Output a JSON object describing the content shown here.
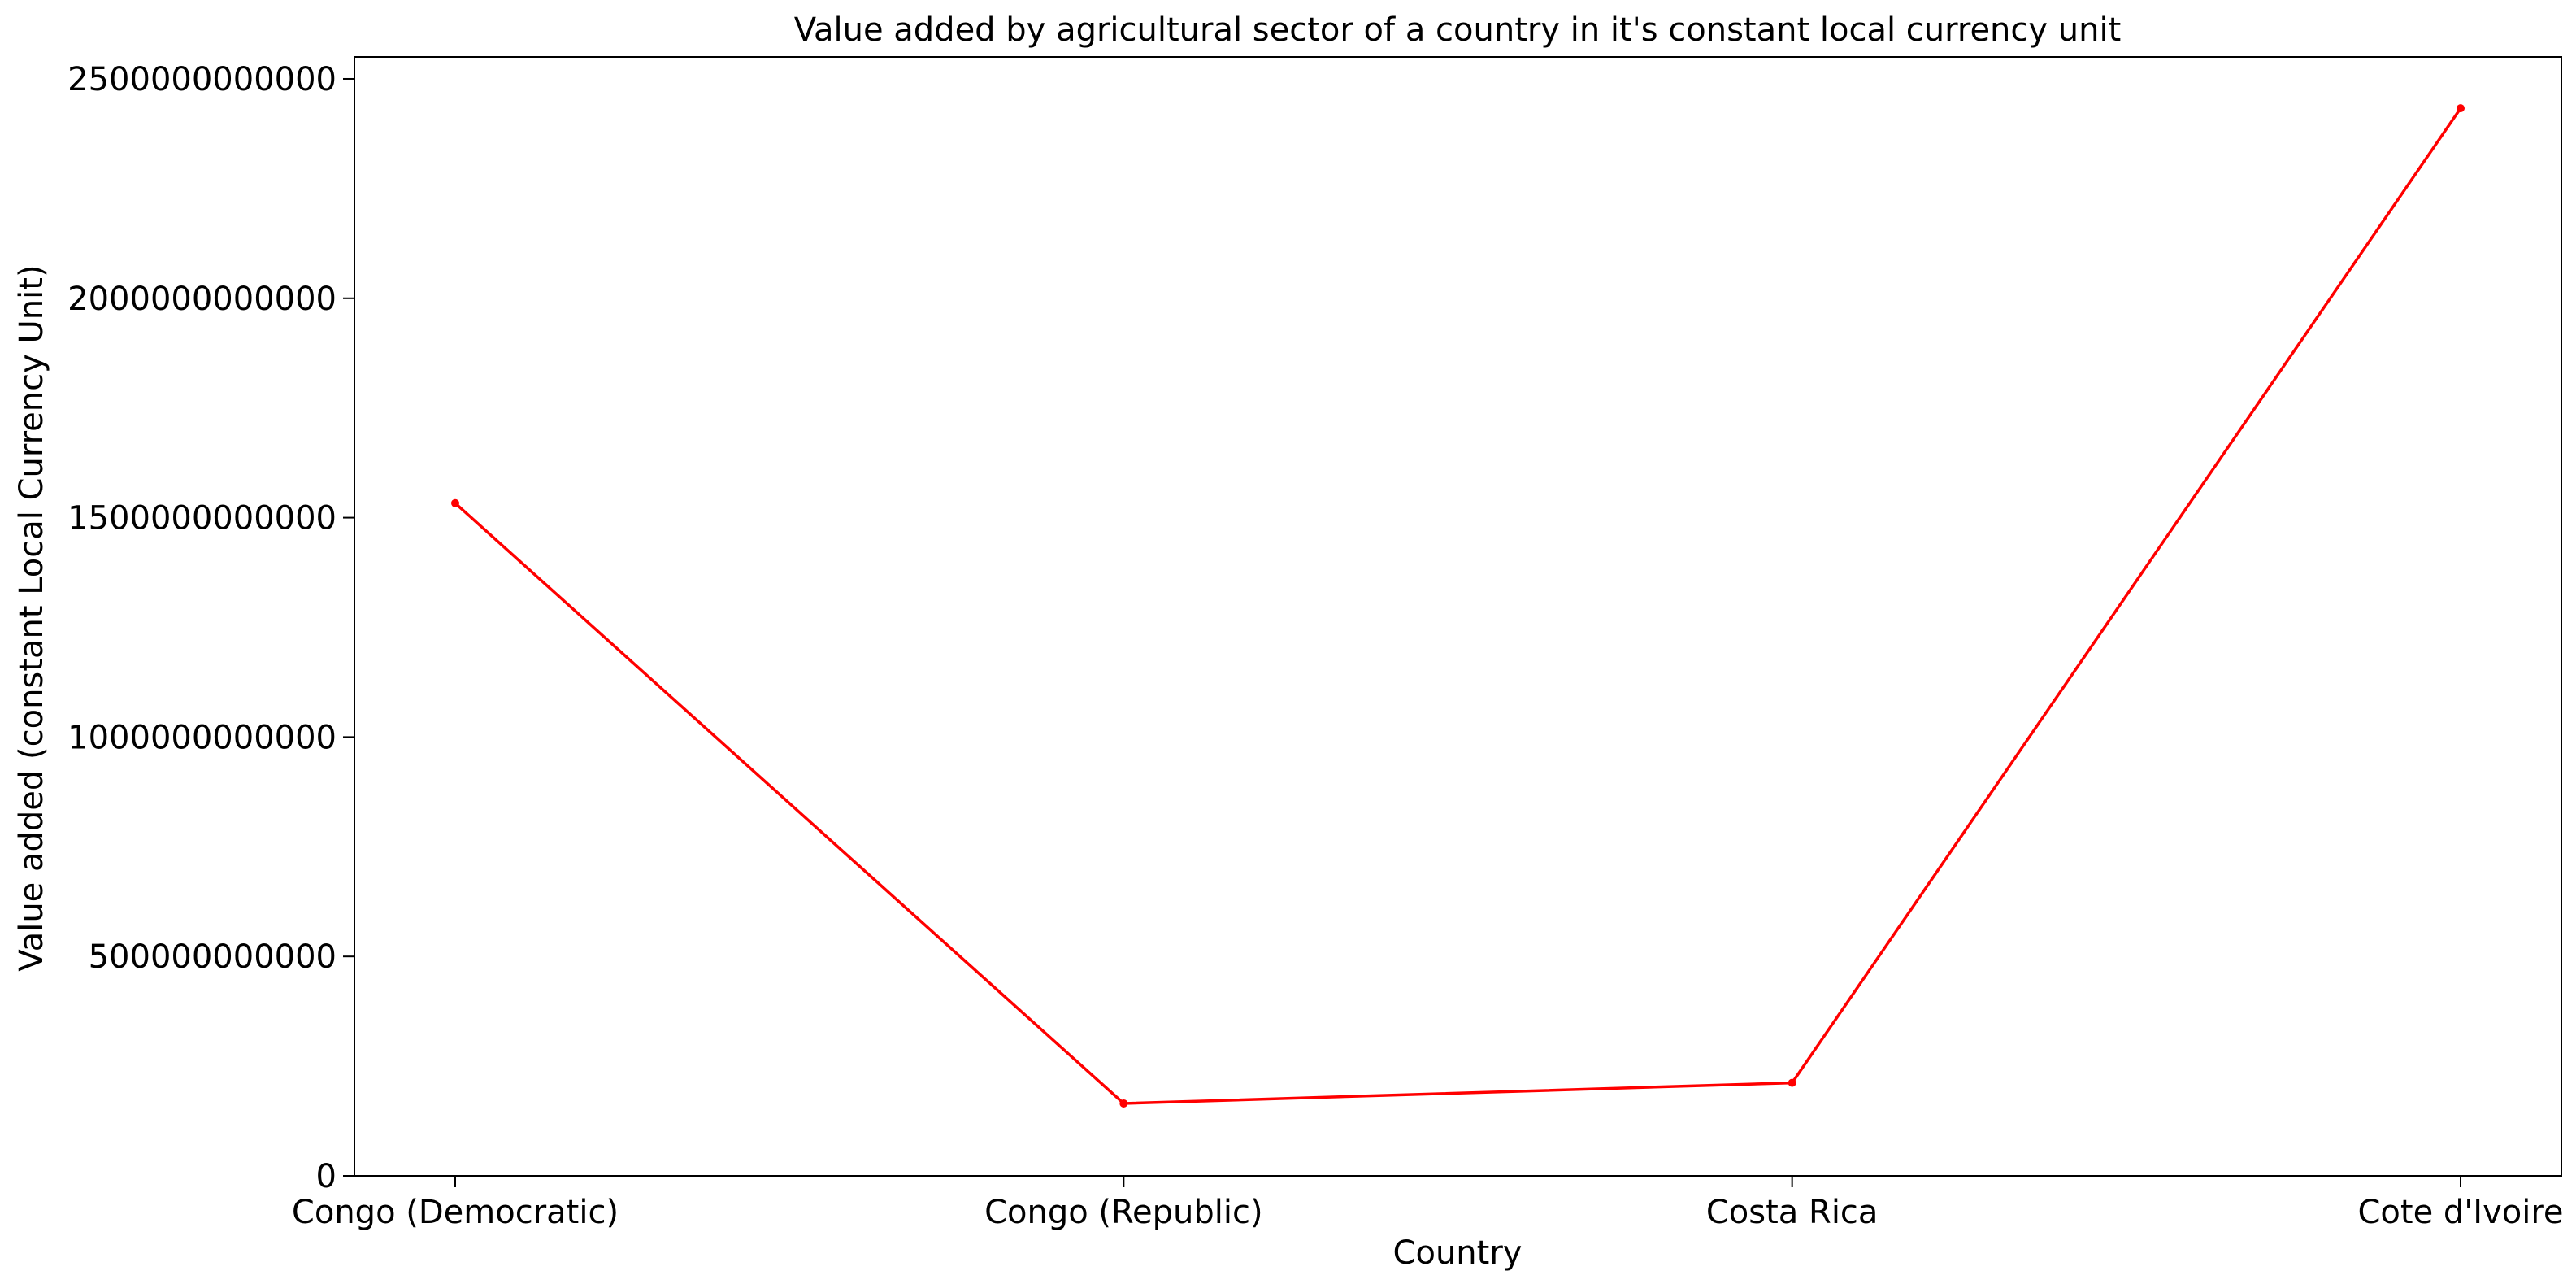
{
  "chart_data": {
    "type": "line",
    "title": "Value added by agricultural sector of a country in it's constant local currency unit",
    "xlabel": "Country",
    "ylabel": "Value added (constant Local Currency Unit)",
    "categories": [
      "Congo (Democratic)",
      "Congo (Republic)",
      "Costa Rica",
      "Cote d'Ivoire"
    ],
    "series": [
      {
        "values": [
          1533000000000,
          165000000000,
          212000000000,
          2433000000000
        ],
        "color": "#ff0000"
      }
    ],
    "ylim": [
      0,
      2550000000000
    ],
    "yticks": [
      0,
      500000000000,
      1000000000000,
      1500000000000,
      2000000000000,
      2500000000000
    ],
    "ytick_labels": [
      "0",
      "500000000000",
      "1000000000000",
      "1500000000000",
      "2000000000000",
      "2500000000000"
    ],
    "grid": false,
    "legend": "none"
  }
}
